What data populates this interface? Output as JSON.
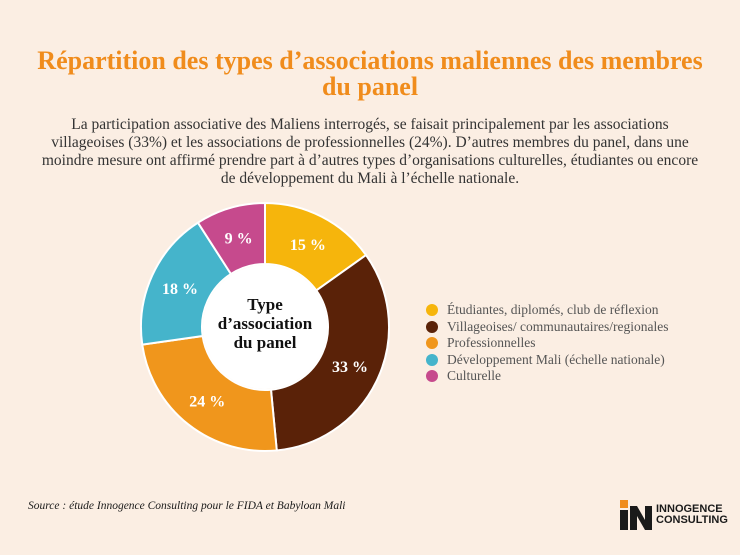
{
  "title": "Répartition des types d’associations maliennes des membres du panel",
  "intro": "La participation associative des Maliens interrogés, se faisait principalement par les associations villageoises (33%) et les associations de professionnelles (24%). D’autres membres du panel, dans une moindre mesure ont affirmé prendre part à d’autres types d’organisations culturelles, étudiantes ou encore de développement du Mali à l’échelle nationale.",
  "source": "Source : étude Innogence Consulting pour le FIDA et Babyloan Mali",
  "logo": {
    "line1": "INNOGENCE",
    "line2": "CONSULTING"
  },
  "chart_data": {
    "type": "pie",
    "center_label": [
      "Type",
      "d’association",
      "du panel"
    ],
    "categories": [
      "Étudiantes, diplomés, club de réflexion",
      "Villageoises/ communautaires/regionales",
      "Professionnelles",
      "Développement Mali (échelle nationale)",
      "Culturelle"
    ],
    "values": [
      15,
      33,
      24,
      18,
      9
    ],
    "data_labels": [
      "15 %",
      "33 %",
      "24 %",
      "18 %",
      "9 %"
    ],
    "colors": [
      "#f6b50c",
      "#5a2208",
      "#f0961c",
      "#45b4cb",
      "#c64a8d"
    ],
    "legend_position": "right"
  }
}
